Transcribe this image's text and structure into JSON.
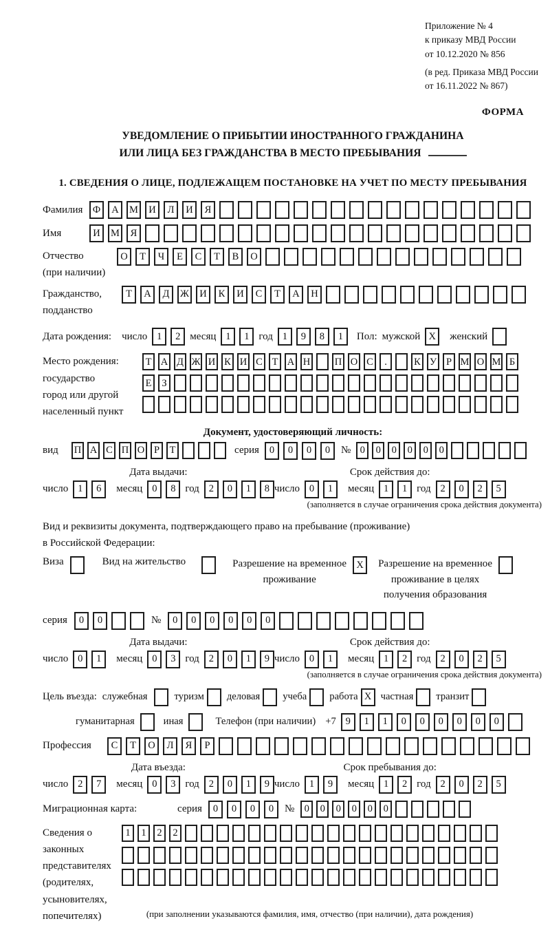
{
  "header": {
    "line1": "Приложение № 4",
    "line2": "к приказу МВД России",
    "line3": "от 10.12.2020 № 856",
    "line4": "(в ред. Приказа МВД России",
    "line5": "от 16.11.2022 № 867)",
    "forma": "ФОРМА"
  },
  "title": {
    "line1": "УВЕДОМЛЕНИЕ О ПРИБЫТИИ ИНОСТРАННОГО ГРАЖДАНИНА",
    "line2": "ИЛИ ЛИЦА БЕЗ ГРАЖДАНСТВА В МЕСТО ПРЕБЫВАНИЯ"
  },
  "section1": {
    "title": "1. СВЕДЕНИЯ О ЛИЦЕ, ПОДЛЕЖАЩЕМ ПОСТАНОВКЕ НА УЧЕТ ПО МЕСТУ ПРЕБЫВАНИЯ"
  },
  "date_labels": {
    "day": "число",
    "month": "месяц",
    "year": "год"
  },
  "fields": {
    "surname": {
      "label": "Фамилия",
      "run": {
        "chars": "ФАМИЛИЯ",
        "len": 24
      }
    },
    "firstname": {
      "label": "Имя",
      "run": {
        "chars": "ИМЯ",
        "len": 24
      }
    },
    "patronymic": {
      "label1": "Отчество",
      "label2": "(при наличии)",
      "run": {
        "chars": "ОТЧЕСТВО",
        "len": 22
      }
    },
    "citizenship": {
      "label1": "Гражданство,",
      "label2": "подданство",
      "run": {
        "chars": "ТАДЖИКИСТАН",
        "len": 22
      }
    },
    "birth": {
      "label": "Дата рождения:",
      "day": {
        "chars": "12",
        "len": 2
      },
      "month": {
        "chars": "11",
        "len": 2
      },
      "year": {
        "chars": "1981",
        "len": 4
      },
      "sex_label": "Пол:",
      "male_label": "мужской",
      "male_check": {
        "chars": "X",
        "len": 1
      },
      "female_label": "женский",
      "female_check": {
        "chars": "",
        "len": 1
      }
    },
    "birth_place": {
      "label1": "Место рождения:",
      "label2": "государство",
      "label3": "город или другой",
      "label4": "населенный пункт",
      "row1": {
        "chars": "ТАДЖИКИСТАН ПОС. КУРМОМБ",
        "len": 24
      },
      "row2": {
        "chars": "ЕЗ",
        "len": 24
      },
      "row3": {
        "chars": "",
        "len": 24
      }
    },
    "id_doc": {
      "header": "Документ, удостоверяющий личность:",
      "vid_label": "вид",
      "vid": {
        "chars": "ПАСПОРТ",
        "len": 10
      },
      "seriya_label": "серия",
      "seriya": {
        "chars": "0000",
        "len": 4
      },
      "num_label": "№",
      "num": {
        "chars": "000000",
        "len": 11
      }
    },
    "issue1": {
      "title": "Дата выдачи:",
      "day": {
        "chars": "16",
        "len": 2
      },
      "month": {
        "chars": "08",
        "len": 2
      },
      "year": {
        "chars": "2018",
        "len": 4
      }
    },
    "valid1": {
      "title": "Срок действия до:",
      "day": {
        "chars": "01",
        "len": 2
      },
      "month": {
        "chars": "11",
        "len": 2
      },
      "year": {
        "chars": "2025",
        "len": 4
      }
    },
    "validity_note": "(заполняется в случае ограничения срока действия документа)",
    "resident_doc": {
      "intro1": "Вид и реквизиты документа, подтверждающего право на пребывание (проживание)",
      "intro2": "в Российской Федерации:",
      "visa_label": "Виза",
      "visa_check": {
        "chars": "",
        "len": 1
      },
      "vnz_label": "Вид на жительство",
      "vnz_check": {
        "chars": "",
        "len": 1
      },
      "rvp_label1": "Разрешение на временное",
      "rvp_label2": "проживание",
      "rvp_check": {
        "chars": "X",
        "len": 1
      },
      "rvpo_label1": "Разрешение на временное",
      "rvpo_label2": "проживание в целях",
      "rvpo_label3": "получения образования",
      "rvpo_check": {
        "chars": "",
        "len": 1
      },
      "seriya_label": "серия",
      "seriya": {
        "chars": "00",
        "len": 4
      },
      "num_label": "№",
      "num": {
        "chars": "000000",
        "len": 14
      }
    },
    "issue2": {
      "title": "Дата выдачи:",
      "day": {
        "chars": "01",
        "len": 2
      },
      "month": {
        "chars": "03",
        "len": 2
      },
      "year": {
        "chars": "2019",
        "len": 4
      }
    },
    "valid2": {
      "title": "Срок действия до:",
      "day": {
        "chars": "01",
        "len": 2
      },
      "month": {
        "chars": "12",
        "len": 2
      },
      "year": {
        "chars": "2025",
        "len": 4
      }
    },
    "purpose": {
      "label": "Цель въезда:",
      "opt1": "служебная",
      "chk1": {
        "chars": "",
        "len": 1
      },
      "opt2": "туризм",
      "chk2": {
        "chars": "",
        "len": 1
      },
      "opt3": "деловая",
      "chk3": {
        "chars": "",
        "len": 1
      },
      "opt4": "учеба",
      "chk4": {
        "chars": "",
        "len": 1
      },
      "opt5": "работа",
      "chk5": {
        "chars": "X",
        "len": 1
      },
      "opt6": "частная",
      "chk6": {
        "chars": "",
        "len": 1
      },
      "opt7": "транзит",
      "chk7": {
        "chars": "",
        "len": 1
      },
      "opt8": "гуманитарная",
      "chk8": {
        "chars": "",
        "len": 1
      },
      "opt9": "иная",
      "chk9": {
        "chars": "",
        "len": 1
      }
    },
    "phone": {
      "label": "Телефон (при наличии)",
      "prefix": "+7",
      "run": {
        "chars": "911000000",
        "len": 10
      }
    },
    "profession": {
      "label": "Профессия",
      "run": {
        "chars": "СТОЛЯР",
        "len": 23
      }
    },
    "entry": {
      "title": "Дата въезда:",
      "day": {
        "chars": "27",
        "len": 2
      },
      "month": {
        "chars": "03",
        "len": 2
      },
      "year": {
        "chars": "2019",
        "len": 4
      }
    },
    "stay": {
      "title": "Срок пребывания до:",
      "day": {
        "chars": "19",
        "len": 2
      },
      "month": {
        "chars": "12",
        "len": 2
      },
      "year": {
        "chars": "2025",
        "len": 4
      }
    },
    "migration_card": {
      "label": "Миграционная карта:",
      "seriya_label": "серия",
      "seriya": {
        "chars": "0000",
        "len": 4
      },
      "num_label": "№",
      "num": {
        "chars": "000000",
        "len": 11
      }
    },
    "legal_reps": {
      "label1": "Сведения о",
      "label2": "законных",
      "label3": "представителях",
      "label4": "(родителях,",
      "label5": "усыновителях,",
      "label6": "попечителях)",
      "row1": {
        "chars": "1122",
        "len": 24
      },
      "row2": {
        "chars": "",
        "len": 24
      },
      "row3": {
        "chars": "",
        "len": 24
      },
      "note": "(при заполнении указываются фамилия, имя, отчество (при наличии), дата рождения)"
    }
  }
}
